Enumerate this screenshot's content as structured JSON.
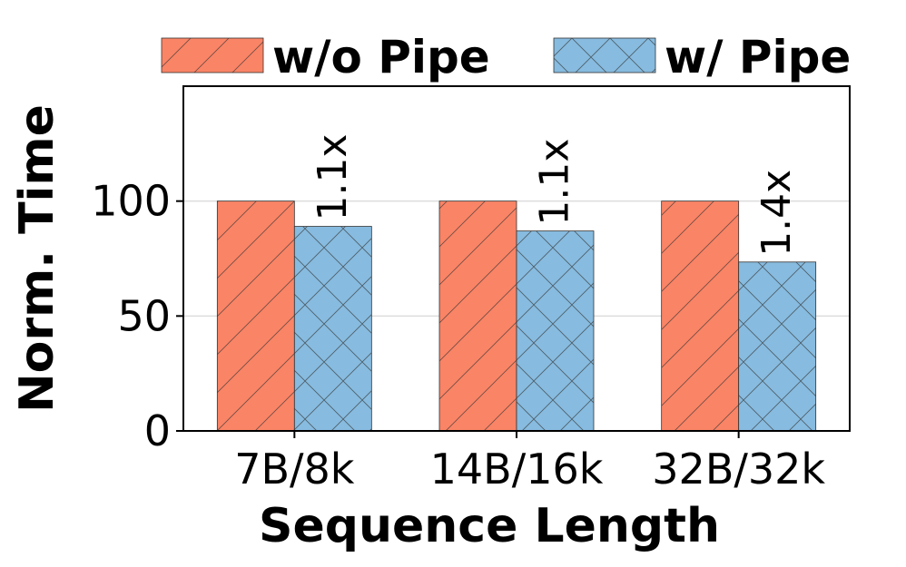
{
  "chart_data": {
    "type": "bar",
    "xlabel": "Sequence Length",
    "ylabel": "Norm. Time",
    "categories": [
      "7B/8k",
      "14B/16k",
      "32B/32k"
    ],
    "series": [
      {
        "name": "w/o Pipe",
        "color": "#fa8466",
        "hatch": "diagonal",
        "values": [
          100,
          100,
          100
        ]
      },
      {
        "name": "w/ Pipe",
        "color": "#87bbdf",
        "hatch": "crosshatch",
        "values": [
          89,
          87,
          73.5
        ]
      }
    ],
    "bar_labels": [
      "1.1x",
      "1.1x",
      "1.4x"
    ],
    "yticks": [
      0,
      50,
      100
    ],
    "ylim": [
      0,
      150
    ],
    "grid": "y",
    "legend_position": "top"
  }
}
